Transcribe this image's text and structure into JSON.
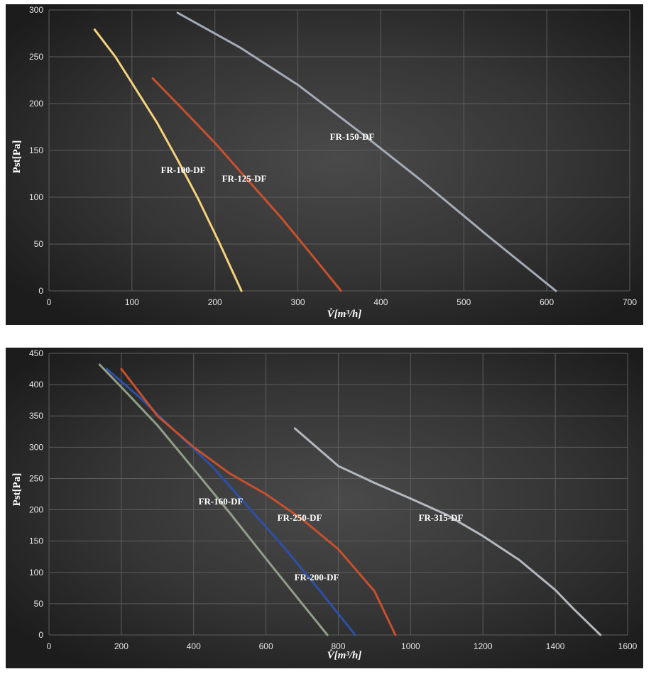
{
  "chart_data": [
    {
      "type": "line",
      "xlabel": "V̇[m³/h]",
      "ylabel": "Pst[Pa]",
      "xlim": [
        0,
        700
      ],
      "ylim": [
        0,
        300
      ],
      "xticks": [
        "0",
        "100",
        "200",
        "300",
        "400",
        "500",
        "600",
        "700"
      ],
      "yticks": [
        "0",
        "50",
        "100",
        "150",
        "200",
        "250",
        "300"
      ],
      "grid": true,
      "series": [
        {
          "name": "FR-100-DF",
          "color": "#f3d27a",
          "x": [
            55,
            80,
            105,
            130,
            155,
            180,
            205,
            232
          ],
          "y": [
            279,
            250,
            215,
            180,
            140,
            98,
            52,
            0
          ]
        },
        {
          "name": "FR-125-DF",
          "color": "#c8502d",
          "x": [
            125,
            160,
            200,
            240,
            280,
            320,
            352
          ],
          "y": [
            227,
            195,
            158,
            118,
            78,
            35,
            0
          ]
        },
        {
          "name": "FR-150-DF",
          "color": "#a4abb8",
          "x": [
            155,
            230,
            300,
            380,
            450,
            530,
            611
          ],
          "y": [
            297,
            260,
            220,
            166,
            117,
            58,
            0
          ]
        }
      ],
      "annotations": [
        "FR-100-DF",
        "FR-125-DF",
        "FR-150-DF"
      ]
    },
    {
      "type": "line",
      "xlabel": "V̇[m³/h]",
      "ylabel": "Pst[Pa]",
      "xlim": [
        0,
        1600
      ],
      "ylim": [
        0,
        450
      ],
      "xticks": [
        "0",
        "200",
        "400",
        "600",
        "800",
        "1000",
        "1200",
        "1400",
        "1600"
      ],
      "yticks": [
        "0",
        "50",
        "100",
        "150",
        "200",
        "250",
        "300",
        "350",
        "400",
        "450"
      ],
      "grid": true,
      "series": [
        {
          "name": "FR-160-DF",
          "color": "#8f9f88",
          "x": [
            140,
            200,
            300,
            400,
            500,
            600,
            700,
            770
          ],
          "y": [
            432,
            396,
            335,
            265,
            195,
            122,
            50,
            0
          ]
        },
        {
          "name": "FR-200-DF",
          "color": "#2d50a6",
          "x": [
            160,
            250,
            350,
            450,
            550,
            650,
            750,
            847
          ],
          "y": [
            425,
            380,
            325,
            270,
            205,
            140,
            70,
            0
          ]
        },
        {
          "name": "FR-250-DF",
          "color": "#c8502d",
          "x": [
            200,
            300,
            400,
            500,
            600,
            700,
            800,
            900,
            958
          ],
          "y": [
            425,
            350,
            300,
            258,
            225,
            185,
            137,
            70,
            0
          ]
        },
        {
          "name": "FR-315-DF",
          "color": "#b4b9bf",
          "x": [
            680,
            800,
            900,
            1000,
            1100,
            1200,
            1300,
            1400,
            1450,
            1525
          ],
          "y": [
            330,
            270,
            243,
            218,
            192,
            158,
            120,
            72,
            42,
            0
          ]
        }
      ],
      "annotations": [
        "FR-160-DF",
        "FR-200-DF",
        "FR-250-DF",
        "FR-315-DF"
      ]
    }
  ]
}
